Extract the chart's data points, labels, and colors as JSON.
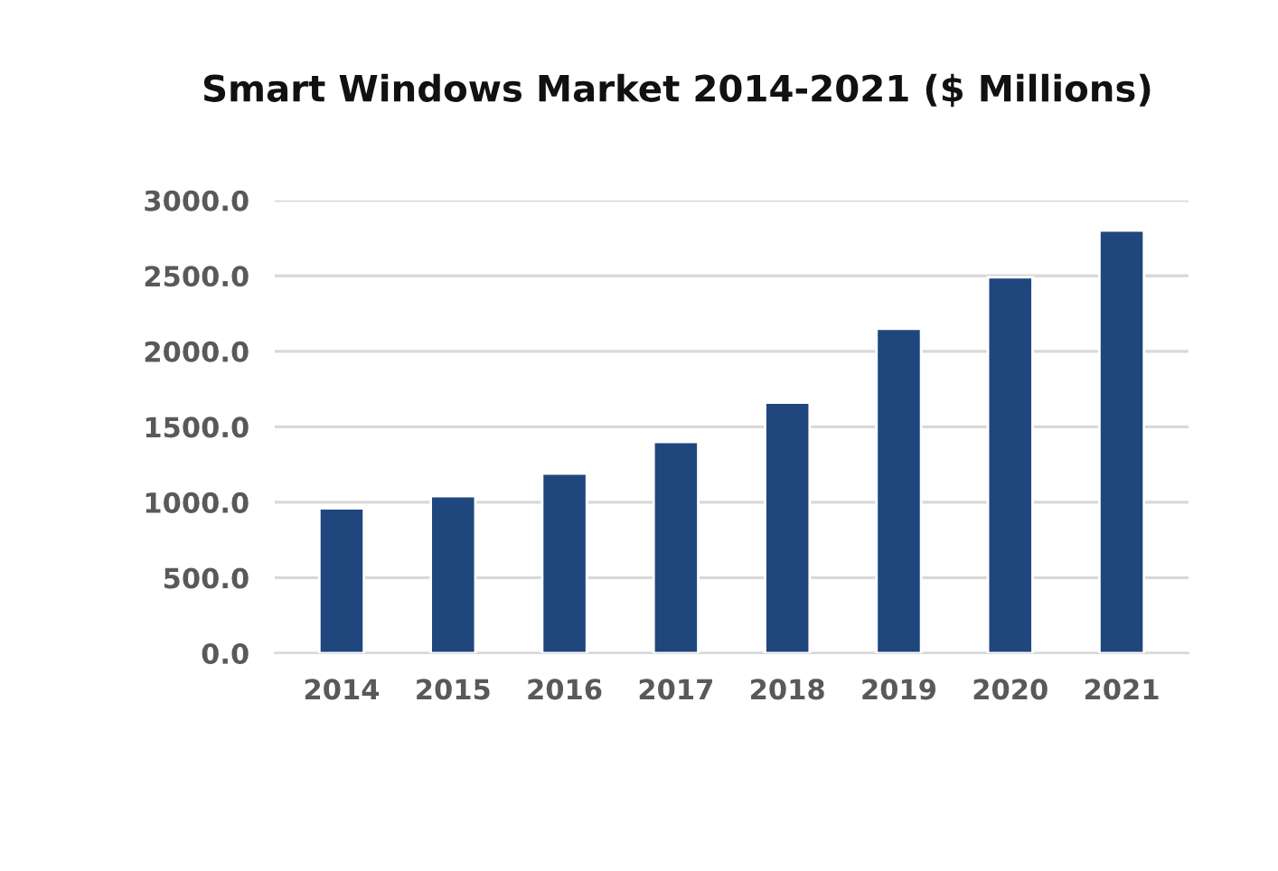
{
  "chart_data": {
    "type": "bar",
    "title": "Smart Windows Market 2014-2021 ($ Millions)",
    "categories": [
      "2014",
      "2015",
      "2016",
      "2017",
      "2018",
      "2019",
      "2020",
      "2021"
    ],
    "values": [
      960,
      1040,
      1190,
      1400,
      1660,
      2150,
      2490,
      2800
    ],
    "color": "#1f477d",
    "ylim": [
      0,
      3000
    ],
    "yticks": [
      {
        "value": 0,
        "label": "0.0"
      },
      {
        "value": 500,
        "label": "500.0"
      },
      {
        "value": 1000,
        "label": "1000.0"
      },
      {
        "value": 1500,
        "label": "1500.0"
      },
      {
        "value": 2000,
        "label": "2000.0"
      },
      {
        "value": 2500,
        "label": "2500.0"
      },
      {
        "value": 3000,
        "label": "3000.0"
      }
    ],
    "grid": "y"
  }
}
